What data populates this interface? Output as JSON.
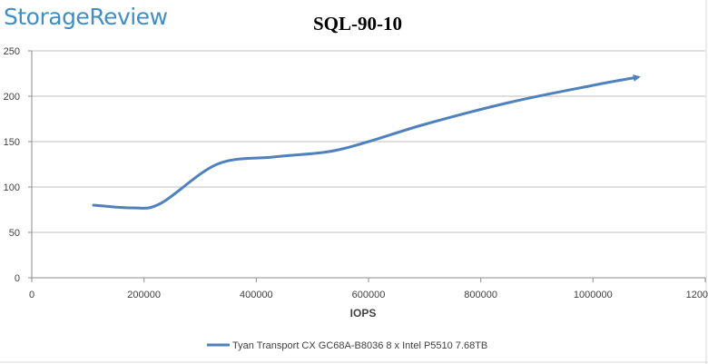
{
  "branding": {
    "logo_text": "StorageReview"
  },
  "chart_data": {
    "type": "line",
    "title": "SQL-90-10",
    "xlabel": "IOPS",
    "ylabel": "",
    "xlim": [
      0,
      1200000
    ],
    "ylim": [
      0,
      250
    ],
    "x_ticks": [
      0,
      200000,
      400000,
      600000,
      800000,
      1000000,
      1200000
    ],
    "x_tick_labels": [
      "0",
      "200000",
      "400000",
      "600000",
      "800000",
      "1000000",
      "1200000"
    ],
    "y_ticks": [
      0,
      50,
      100,
      150,
      200,
      250
    ],
    "y_tick_labels": [
      "0",
      "50",
      "100",
      "150",
      "200",
      "250"
    ],
    "grid": "horizontal",
    "legend_position": "bottom",
    "series": [
      {
        "name": "Tyan Transport CX GC68A-B8036 8 x Intel P5510 7.68TB",
        "color": "#4f81bd",
        "points": [
          [
            110000,
            80
          ],
          [
            180000,
            77
          ],
          [
            230000,
            82
          ],
          [
            330000,
            125
          ],
          [
            430000,
            133
          ],
          [
            530000,
            139
          ],
          [
            600000,
            150
          ],
          [
            700000,
            169
          ],
          [
            850000,
            193
          ],
          [
            1000000,
            212
          ],
          [
            1080000,
            221
          ]
        ]
      }
    ]
  }
}
